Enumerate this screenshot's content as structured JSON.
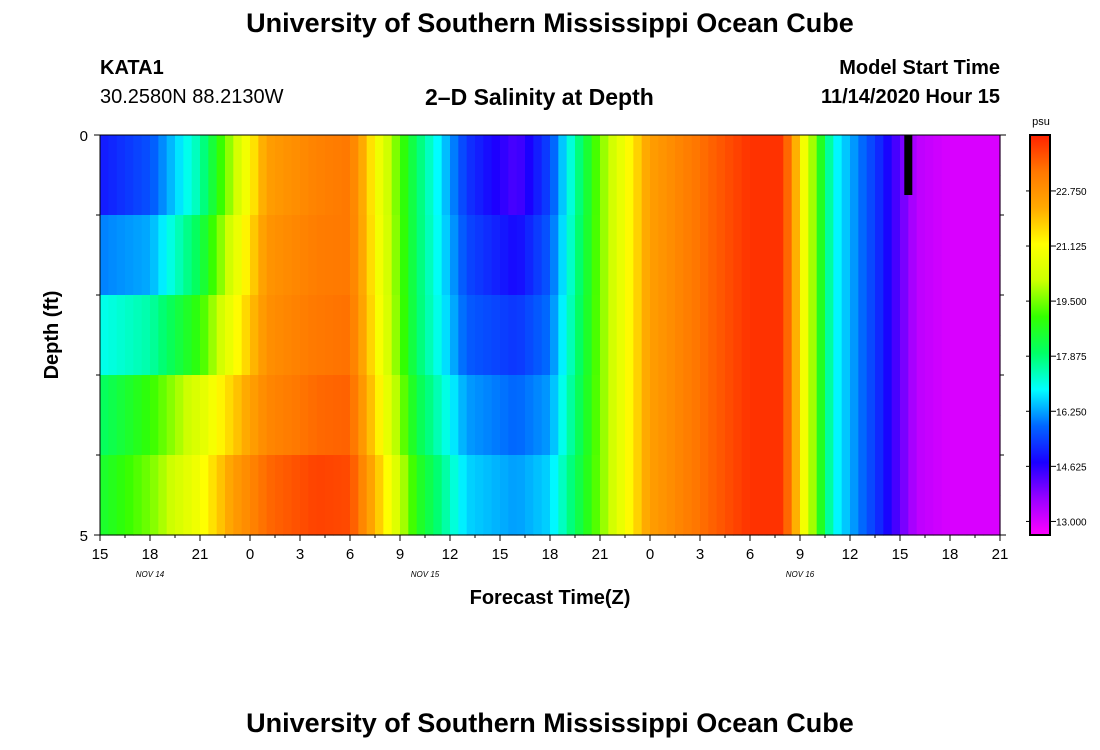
{
  "header": {
    "title": "University of Southern Mississippi Ocean Cube",
    "station_id": "KATA1",
    "coordinates": "30.2580N 88.2130W",
    "plot_title": "2–D Salinity at Depth",
    "model_start_label": "Model Start Time",
    "model_start_value": "11/14/2020 Hour 15"
  },
  "footer": {
    "title": "University of Southern Mississippi Ocean Cube"
  },
  "chart_data": {
    "type": "heatmap",
    "xlabel": "Forecast Time(Z)",
    "ylabel": "Depth (ft)",
    "x_tick_labels": [
      "15",
      "18",
      "21",
      "0",
      "3",
      "6",
      "9",
      "12",
      "15",
      "18",
      "21",
      "0",
      "3",
      "6",
      "9",
      "12",
      "15",
      "18",
      "21"
    ],
    "x_date_labels": [
      {
        "text": "NOV 14",
        "at_tick": 1
      },
      {
        "text": "NOV 15",
        "at_tick": 6.5
      },
      {
        "text": "NOV 16",
        "at_tick": 14
      }
    ],
    "x_range_hours": [
      0,
      54
    ],
    "y_tick_labels": [
      "0",
      "5"
    ],
    "y_range_ft": [
      0,
      5
    ],
    "depth_levels_ft": [
      0.25,
      0.75,
      1.25,
      1.75,
      2.25,
      2.75,
      3.25,
      3.75,
      4.25,
      4.75
    ],
    "colorbar": {
      "unit": "psu",
      "tick_labels": [
        "13.000",
        "14.625",
        "16.250",
        "17.875",
        "19.500",
        "21.125",
        "22.750"
      ],
      "range": [
        12.6,
        24.4
      ],
      "colors": [
        "#ff00ff",
        "#9900ff",
        "#1a00ff",
        "#0066ff",
        "#00ffff",
        "#00ff66",
        "#33ff00",
        "#ccff00",
        "#ffff00",
        "#ffaa00",
        "#ff7700",
        "#ff2200"
      ]
    },
    "salinity_psu": {
      "hours": [
        0,
        3,
        6,
        8,
        10,
        13,
        15,
        17,
        19,
        22,
        25,
        27,
        30,
        33,
        36,
        39,
        41,
        42,
        44,
        47,
        49,
        51,
        54
      ],
      "rows": [
        [
          15.0,
          15.6,
          17.5,
          20.0,
          22.5,
          23.1,
          23.3,
          20.5,
          18.0,
          15.3,
          14.3,
          15.5,
          19.5,
          22.5,
          23.4,
          24.2,
          24.2,
          21.5,
          17.0,
          15.0,
          13.3,
          13.0,
          13.0
        ],
        [
          15.0,
          15.6,
          17.5,
          20.0,
          22.5,
          23.1,
          23.3,
          20.5,
          18.0,
          15.3,
          14.3,
          15.5,
          19.5,
          22.5,
          23.4,
          24.2,
          24.2,
          21.5,
          17.0,
          15.0,
          13.3,
          13.0,
          13.0
        ],
        [
          16.0,
          16.3,
          18.2,
          20.5,
          22.7,
          23.2,
          23.3,
          20.6,
          18.0,
          15.5,
          14.8,
          15.7,
          19.5,
          22.5,
          23.4,
          24.2,
          24.2,
          21.5,
          17.0,
          15.0,
          13.3,
          13.0,
          13.0
        ],
        [
          16.0,
          16.3,
          18.2,
          20.5,
          22.7,
          23.2,
          23.3,
          20.6,
          18.0,
          15.5,
          14.8,
          15.7,
          19.5,
          22.5,
          23.4,
          24.2,
          24.2,
          21.5,
          17.0,
          15.0,
          13.3,
          13.0,
          13.0
        ],
        [
          17.0,
          17.5,
          19.0,
          21.0,
          22.8,
          23.3,
          23.4,
          20.7,
          18.0,
          15.7,
          15.3,
          15.9,
          19.5,
          22.5,
          23.4,
          24.2,
          24.2,
          21.5,
          17.0,
          15.0,
          13.3,
          13.0,
          13.0
        ],
        [
          17.0,
          17.5,
          19.0,
          21.0,
          22.8,
          23.3,
          23.4,
          20.7,
          18.0,
          15.7,
          15.3,
          15.9,
          19.5,
          22.5,
          23.4,
          24.2,
          24.2,
          21.5,
          17.0,
          15.0,
          13.3,
          13.0,
          13.0
        ],
        [
          18.0,
          19.0,
          20.5,
          21.8,
          23.0,
          23.5,
          23.6,
          21.0,
          18.3,
          16.2,
          15.8,
          16.2,
          19.5,
          22.5,
          23.4,
          24.2,
          24.2,
          21.5,
          17.0,
          15.0,
          13.3,
          13.0,
          13.0
        ],
        [
          18.0,
          19.0,
          20.5,
          21.8,
          23.0,
          23.5,
          23.6,
          21.0,
          18.3,
          16.2,
          15.8,
          16.2,
          19.5,
          22.5,
          23.4,
          24.2,
          24.2,
          21.5,
          17.0,
          15.0,
          13.3,
          13.0,
          13.0
        ],
        [
          18.5,
          19.5,
          21.0,
          22.5,
          23.5,
          24.0,
          23.9,
          21.5,
          18.8,
          16.6,
          16.2,
          16.6,
          19.5,
          22.5,
          23.4,
          24.2,
          24.2,
          21.5,
          17.0,
          15.0,
          13.3,
          13.0,
          13.0
        ],
        [
          18.5,
          19.5,
          21.0,
          22.5,
          23.5,
          24.0,
          23.9,
          21.5,
          18.8,
          16.6,
          16.2,
          16.6,
          19.5,
          22.5,
          23.4,
          24.2,
          24.2,
          21.5,
          17.0,
          15.0,
          13.3,
          13.0,
          13.0
        ]
      ]
    },
    "current_time_marker_hour": 48.5
  }
}
